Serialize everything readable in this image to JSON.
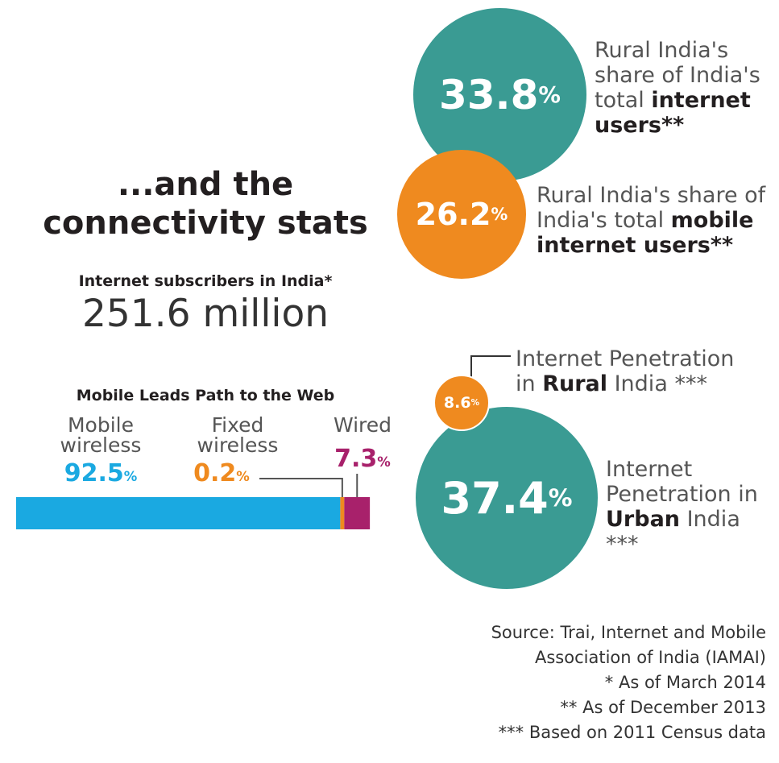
{
  "headline": [
    "...and the",
    "connectivity stats"
  ],
  "subscribers": {
    "label": "Internet subscribers in India*",
    "value": "251.6 million"
  },
  "chart_data": [
    {
      "type": "bar",
      "title": "Mobile Leads Path to the Web",
      "orientation": "horizontal-stacked",
      "categories": [
        "Mobile wireless",
        "Fixed wireless",
        "Wired"
      ],
      "labels": [
        [
          "Mobile",
          "wireless"
        ],
        [
          "Fixed",
          "wireless"
        ],
        [
          "Wired"
        ]
      ],
      "values": [
        92.5,
        0.2,
        7.3
      ],
      "value_labels": [
        "92.5",
        "0.2",
        "7.3"
      ],
      "unit": "%",
      "colors": [
        "#1aa9e1",
        "#ef8a1f",
        "#a8216b"
      ]
    },
    {
      "type": "bubble",
      "items": [
        {
          "value": 33.8,
          "text": "33.8",
          "unit": "%",
          "color": "#3a9b93",
          "label": [
            {
              "t": "Rural India's"
            },
            {
              "t": "share of India's"
            },
            {
              "t": "total ",
              "b": "internet"
            },
            {
              "b": "users**"
            }
          ]
        },
        {
          "value": 26.2,
          "text": "26.2",
          "unit": "%",
          "color": "#ef8a1f",
          "label": [
            {
              "t": "Rural India's share of"
            },
            {
              "t": "India's total ",
              "b": "mobile"
            },
            {
              "b": "internet users**"
            }
          ]
        }
      ]
    },
    {
      "type": "bubble",
      "items": [
        {
          "value": 8.6,
          "text": "8.6",
          "unit": "%",
          "color": "#ef8a1f",
          "label": [
            {
              "t": "Internet Penetration"
            },
            {
              "t": "in ",
              "b": "Rural",
              "t2": " India ***"
            }
          ]
        },
        {
          "value": 37.4,
          "text": "37.4",
          "unit": "%",
          "color": "#3a9b93",
          "label": [
            {
              "t": "Internet"
            },
            {
              "t": "Penetration in"
            },
            {
              "b": "Urban",
              "t2": " India ***"
            }
          ]
        }
      ]
    }
  ],
  "notes": [
    "Source: Trai, Internet and Mobile",
    "Association of India (IAMAI)",
    "* As of March 2014",
    "** As of December 2013",
    "*** Based on 2011 Census data"
  ]
}
